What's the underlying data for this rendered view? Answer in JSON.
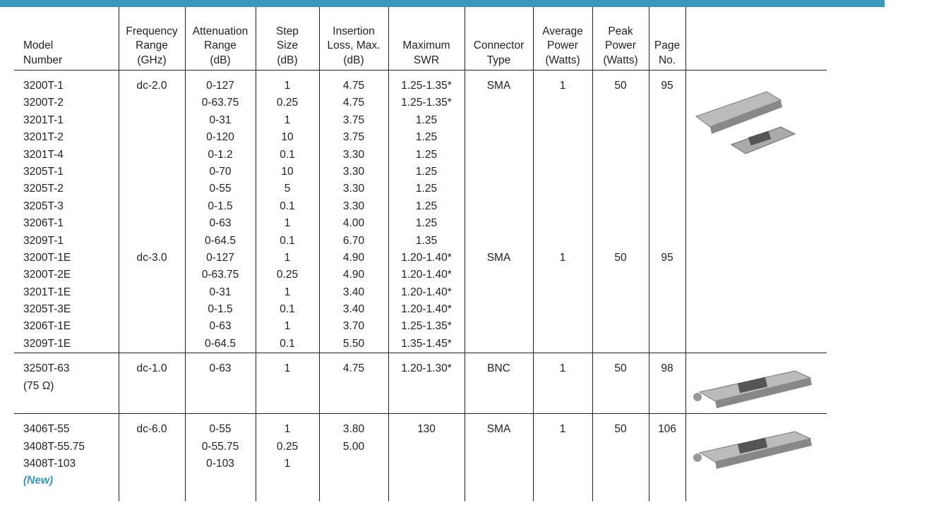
{
  "table": {
    "header": [
      "Model\nNumber",
      "Frequency\nRange\n(GHz)",
      "Attenuation\nRange\n(dB)",
      "Step\nSize\n(dB)",
      "Insertion\nLoss, Max.\n(dB)",
      "Maximum\nSWR",
      "Connector\nType",
      "Average\nPower\n(Watts)",
      "Peak\nPower\n(Watts)",
      "Page\nNo."
    ],
    "groups": [
      {
        "rows": [
          [
            "3200T-1",
            "dc-2.0",
            "0-127",
            "1",
            "4.75",
            "1.25-1.35*",
            "SMA",
            "1",
            "50",
            "95"
          ],
          [
            "3200T-2",
            null,
            "0-63.75",
            "0.25",
            "4.75",
            "1.25-1.35*",
            null,
            null,
            null,
            null
          ],
          [
            "3201T-1",
            null,
            "0-31",
            "1",
            "3.75",
            "1.25",
            null,
            null,
            null,
            null
          ],
          [
            "3201T-2",
            null,
            "0-120",
            "10",
            "3.75",
            "1.25",
            null,
            null,
            null,
            null
          ],
          [
            "3201T-4",
            null,
            "0-1.2",
            "0.1",
            "3.30",
            "1.25",
            null,
            null,
            null,
            null
          ],
          [
            "3205T-1",
            null,
            "0-70",
            "10",
            "3.30",
            "1.25",
            null,
            null,
            null,
            null
          ],
          [
            "3205T-2",
            null,
            "0-55",
            "5",
            "3.30",
            "1.25",
            null,
            null,
            null,
            null
          ],
          [
            "3205T-3",
            null,
            "0-1.5",
            "0.1",
            "3.30",
            "1.25",
            null,
            null,
            null,
            null
          ],
          [
            "3206T-1",
            null,
            "0-63",
            "1",
            "4.00",
            "1.25",
            null,
            null,
            null,
            null
          ],
          [
            "3209T-1",
            null,
            "0-64.5",
            "0.1",
            "6.70",
            "1.35",
            null,
            null,
            null,
            null
          ],
          [
            "3200T-1E",
            "dc-3.0",
            "0-127",
            "1",
            "4.90",
            "1.20-1.40*",
            "SMA",
            "1",
            "50",
            "95"
          ],
          [
            "3200T-2E",
            null,
            "0-63.75",
            "0.25",
            "4.90",
            "1.20-1.40*",
            null,
            null,
            null,
            null
          ],
          [
            "3201T-1E",
            null,
            "0-31",
            "1",
            "3.40",
            "1.20-1.40*",
            null,
            null,
            null,
            null
          ],
          [
            "3205T-3E",
            null,
            "0-1.5",
            "0.1",
            "3.40",
            "1.20-1.40*",
            null,
            null,
            null,
            null
          ],
          [
            "3206T-1E",
            null,
            "0-63",
            "1",
            "3.70",
            "1.25-1.35*",
            null,
            null,
            null,
            null
          ],
          [
            "3209T-1E",
            null,
            "0-64.5",
            "0.1",
            "5.50",
            "1.35-1.45*",
            null,
            null,
            null,
            null
          ]
        ]
      },
      {
        "rows": [
          [
            "3250T-63",
            "dc-1.0",
            "0-63",
            "1",
            "4.75",
            "1.20-1.30*",
            "BNC",
            "1",
            "50",
            "98"
          ],
          [
            "(75 Ω)",
            null,
            null,
            null,
            null,
            null,
            null,
            null,
            null,
            null
          ]
        ]
      },
      {
        "rows": [
          [
            "3406T-55",
            "dc-6.0",
            "0-55",
            "1",
            "3.80",
            "130",
            "SMA",
            "1",
            "50",
            "106"
          ],
          [
            "3408T-55.75",
            null,
            "0-55.75",
            "0.25",
            "5.00",
            null,
            null,
            null,
            null,
            null
          ],
          [
            "3408T-103",
            null,
            "0-103",
            "1",
            null,
            null,
            null,
            null,
            null,
            null
          ]
        ],
        "note": "(New)"
      }
    ]
  }
}
